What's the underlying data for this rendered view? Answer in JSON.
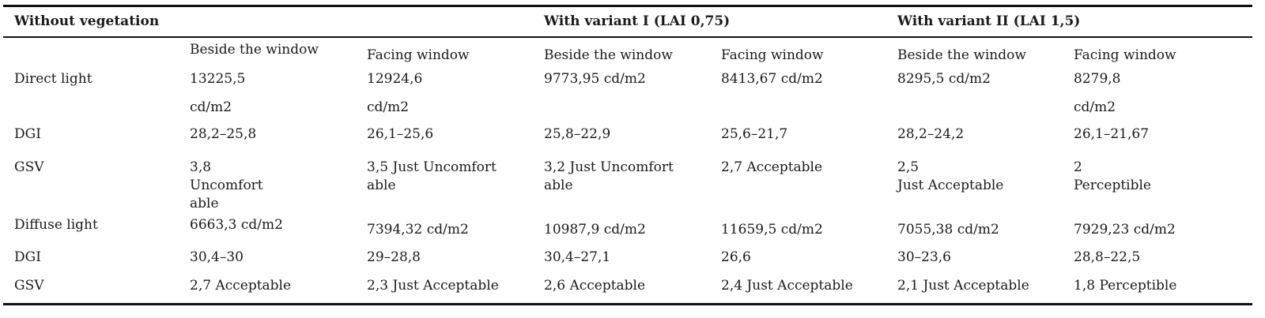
{
  "header": {
    "groups": [
      "Without vegetation",
      "With variant I (LAI 0,75)",
      "With variant II (LAI 1,5)"
    ]
  },
  "subheader": [
    "Beside the window",
    "Facing window",
    "Beside the window",
    "Facing window",
    "Beside the window",
    "Facing window"
  ],
  "rows": [
    {
      "label": "Direct light",
      "cells": [
        [
          "13225,5",
          "cd/m2"
        ],
        [
          "12924,6",
          "cd/m2"
        ],
        [
          "9773,95 cd/m2"
        ],
        [
          "8413,67 cd/m2"
        ],
        [
          "8295,5 cd/m2"
        ],
        [
          "8279,8",
          "cd/m2"
        ]
      ]
    },
    {
      "label": "DGI",
      "cells": [
        [
          "28,2–25,8"
        ],
        [
          "26,1–25,6"
        ],
        [
          "25,8–22,9"
        ],
        [
          "25,6–21,7"
        ],
        [
          "28,2–24,2"
        ],
        [
          "26,1–21,67"
        ]
      ]
    },
    {
      "label": "GSV",
      "cells": [
        [
          "3,8",
          "Uncomfort",
          "able"
        ],
        [
          "3,5 Just Uncomfort",
          "able"
        ],
        [
          "3,2 Just Uncomfort",
          "able"
        ],
        [
          "2,7 Acceptable"
        ],
        [
          "2,5",
          "Just Acceptable"
        ],
        [
          "2",
          "Perceptible"
        ]
      ]
    },
    {
      "label": "Diffuse light",
      "cells": [
        [
          "6663,3 cd/m2"
        ],
        [
          "7394,32 cd/m2"
        ],
        [
          "10987,9 cd/m2"
        ],
        [
          "11659,5 cd/m2"
        ],
        [
          "7055,38 cd/m2"
        ],
        [
          "7929,23 cd/m2"
        ]
      ]
    },
    {
      "label": "DGI",
      "cells": [
        [
          "30,4–30"
        ],
        [
          "29–28,8"
        ],
        [
          "30,4–27,1"
        ],
        [
          "26,6"
        ],
        [
          "30–23,6"
        ],
        [
          "28,8–22,5"
        ]
      ]
    },
    {
      "label": "GSV",
      "cells": [
        [
          "2,7 Acceptable"
        ],
        [
          "2,3 Just Acceptable"
        ],
        [
          "2,6 Acceptable"
        ],
        [
          "2,4 Just Acceptable"
        ],
        [
          "2,1 Just Acceptable"
        ],
        [
          "1,8 Perceptible"
        ]
      ]
    }
  ]
}
